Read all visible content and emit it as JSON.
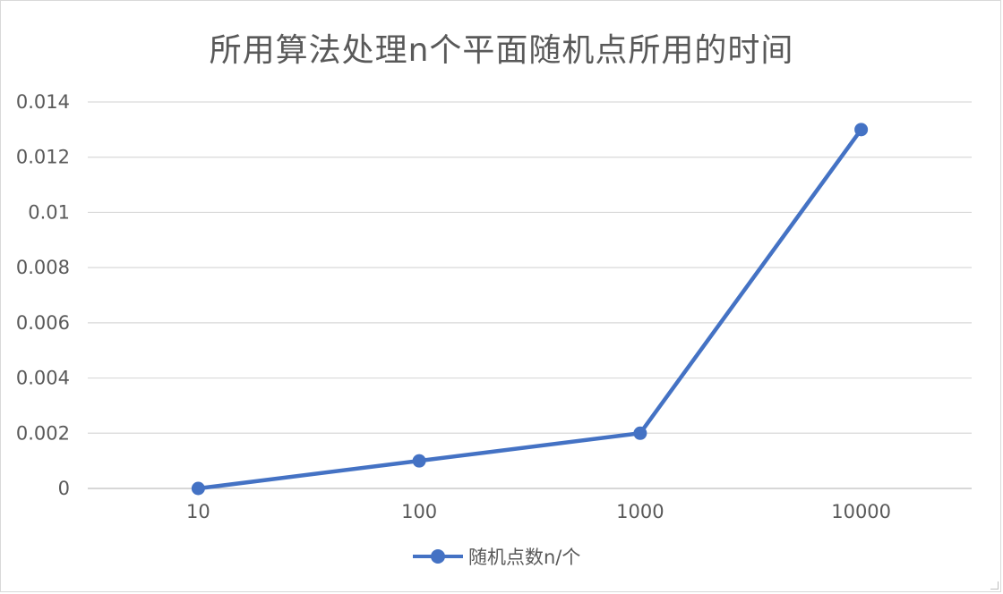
{
  "chart_data": {
    "type": "line",
    "title": "所用算法处理n个平面随机点所用的时间",
    "categories": [
      "10",
      "100",
      "1000",
      "10000"
    ],
    "series": [
      {
        "name": "随机点数n/个",
        "values": [
          0,
          0.001,
          0.002,
          0.013
        ],
        "color": "#4472c4"
      }
    ],
    "yticks": [
      "0.014",
      "0.012",
      "0.01",
      "0.008",
      "0.006",
      "0.004",
      "0.002",
      "0"
    ],
    "ylim": [
      0,
      0.014
    ],
    "grid": true,
    "legend_position": "bottom"
  }
}
